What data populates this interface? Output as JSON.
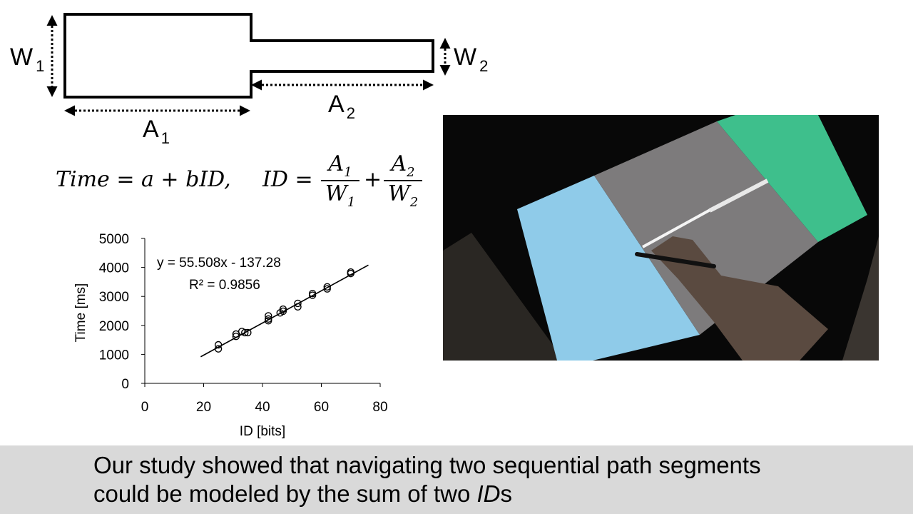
{
  "diagram": {
    "labels": {
      "w1": "W",
      "w1_sub": "1",
      "w2": "W",
      "w2_sub": "2",
      "a1": "A",
      "a1_sub": "1",
      "a2": "A",
      "a2_sub": "2"
    }
  },
  "equation": {
    "lhs": "Time = a + bID,",
    "id_eq": "ID =",
    "plus": "+",
    "frac1": {
      "num": "A",
      "num_sub": "1",
      "den": "W",
      "den_sub": "1"
    },
    "frac2": {
      "num": "A",
      "num_sub": "2",
      "den": "W",
      "den_sub": "2"
    }
  },
  "chart_data": {
    "type": "scatter",
    "xlabel": "ID [bits]",
    "ylabel": "Time [ms]",
    "xlim": [
      0,
      80
    ],
    "ylim": [
      0,
      5000
    ],
    "xticks": [
      "0",
      "20",
      "40",
      "60",
      "80"
    ],
    "yticks": [
      "0",
      "1000",
      "2000",
      "3000",
      "4000",
      "5000"
    ],
    "grid": false,
    "marker": "open-circle",
    "annotation": [
      "y = 55.508x - 137.28",
      "R² = 0.9856"
    ],
    "points": [
      [
        25,
        1330
      ],
      [
        25,
        1190
      ],
      [
        31,
        1700
      ],
      [
        31,
        1620
      ],
      [
        33,
        1790
      ],
      [
        34,
        1750
      ],
      [
        35,
        1750
      ],
      [
        42,
        2330
      ],
      [
        42,
        2220
      ],
      [
        42,
        2160
      ],
      [
        46,
        2430
      ],
      [
        47,
        2560
      ],
      [
        47,
        2490
      ],
      [
        52,
        2760
      ],
      [
        52,
        2640
      ],
      [
        57,
        3100
      ],
      [
        57,
        3040
      ],
      [
        62,
        3330
      ],
      [
        62,
        3260
      ],
      [
        70,
        3840
      ],
      [
        70,
        3790
      ]
    ],
    "fit": {
      "slope": 55.508,
      "intercept": -137.28,
      "x_range": [
        19,
        76
      ]
    }
  },
  "photo": {
    "colors": {
      "background": "#080808",
      "blue_panel": "#8fcbe9",
      "gray_panel": "#7d7b7c",
      "green_panel": "#3ebf8c",
      "path": "#f4f4f4"
    }
  },
  "caption": {
    "line1": "Our study showed that navigating two sequential path segments",
    "line2_prefix": "could be modeled by the sum of two ",
    "line2_em": "ID",
    "line2_suffix": "s"
  }
}
